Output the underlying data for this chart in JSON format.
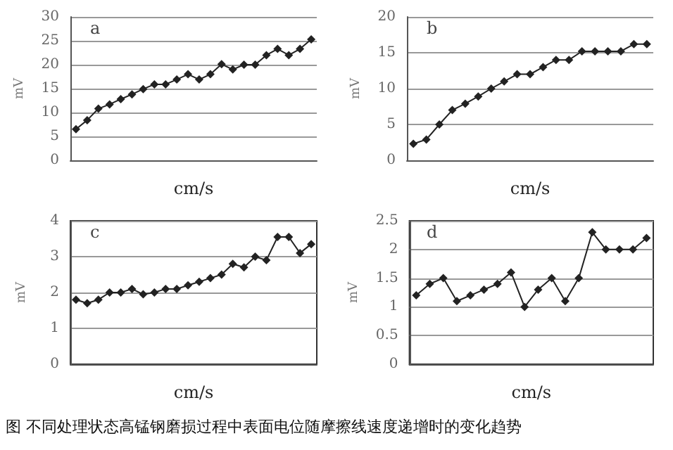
{
  "chart_data": [
    {
      "type": "line",
      "xlabel": "cm/s",
      "ylabel": "mV",
      "annotations": [
        "a"
      ],
      "categories": [
        null,
        null,
        null,
        null,
        null,
        null,
        null,
        null,
        null,
        null,
        null,
        null,
        null,
        null,
        null,
        null,
        null,
        null,
        null,
        null,
        null,
        null
      ],
      "series": [
        {
          "color": "#222222",
          "values": [
            6.5,
            8.4,
            10.8,
            11.7,
            12.8,
            13.8,
            14.9,
            15.9,
            15.9,
            16.9,
            18,
            16.9,
            18,
            20.1,
            19,
            20,
            20,
            22,
            23.3,
            22,
            23.3,
            25.3
          ]
        }
      ],
      "ylim": [
        0,
        30
      ],
      "yticks": [
        0,
        5,
        10,
        15,
        20,
        25,
        30
      ],
      "grid": "y",
      "marker": "diamond"
    },
    {
      "type": "line",
      "xlabel": "cm/s",
      "ylabel": "mV",
      "annotations": [
        "b"
      ],
      "categories": [
        null,
        null,
        null,
        null,
        null,
        null,
        null,
        null,
        null,
        null,
        null,
        null,
        null,
        null,
        null,
        null,
        null,
        null,
        null
      ],
      "series": [
        {
          "color": "#222222",
          "values": [
            2.3,
            2.9,
            5,
            7,
            7.9,
            8.9,
            10,
            11,
            12,
            12,
            13,
            14,
            14,
            15.2,
            15.2,
            15.2,
            15.2,
            16.2,
            16.2
          ]
        }
      ],
      "ylim": [
        0,
        20
      ],
      "yticks": [
        0,
        5,
        10,
        15,
        20
      ],
      "grid": "y",
      "marker": "diamond"
    },
    {
      "type": "line",
      "xlabel": "cm/s",
      "ylabel": "mV",
      "annotations": [
        "c"
      ],
      "categories": [
        null,
        null,
        null,
        null,
        null,
        null,
        null,
        null,
        null,
        null,
        null,
        null,
        null,
        null,
        null,
        null,
        null,
        null,
        null,
        null,
        null,
        null
      ],
      "series": [
        {
          "color": "#222222",
          "values": [
            1.8,
            1.7,
            1.8,
            2,
            2,
            2.1,
            1.95,
            2,
            2.1,
            2.1,
            2.2,
            2.3,
            2.4,
            2.5,
            2.8,
            2.7,
            3,
            2.9,
            3.55,
            3.55,
            3.1,
            3.35
          ]
        }
      ],
      "ylim": [
        0,
        4
      ],
      "yticks": [
        0,
        1,
        2,
        3,
        4
      ],
      "grid": "y",
      "marker": "diamond"
    },
    {
      "type": "line",
      "xlabel": "cm/s",
      "ylabel": "mV",
      "annotations": [
        "d",
        "图 不同处理状态高锰钢磨损过程中表面电位随摩擦线速度递增时的变化趋势"
      ],
      "categories": [
        null,
        null,
        null,
        null,
        null,
        null,
        null,
        null,
        null,
        null,
        null,
        null,
        null,
        null,
        null,
        null,
        null,
        null
      ],
      "series": [
        {
          "color": "#222222",
          "values": [
            1.2,
            1.4,
            1.5,
            1.1,
            1.2,
            1.3,
            1.4,
            1.6,
            1.0,
            1.3,
            1.5,
            1.1,
            1.5,
            2.3,
            2.0,
            2.0,
            2.0,
            2.2
          ]
        }
      ],
      "ylim": [
        0,
        2.5
      ],
      "yticks": [
        0,
        0.5,
        1,
        1.5,
        2,
        2.5
      ],
      "grid": "y",
      "marker": "diamond"
    }
  ]
}
